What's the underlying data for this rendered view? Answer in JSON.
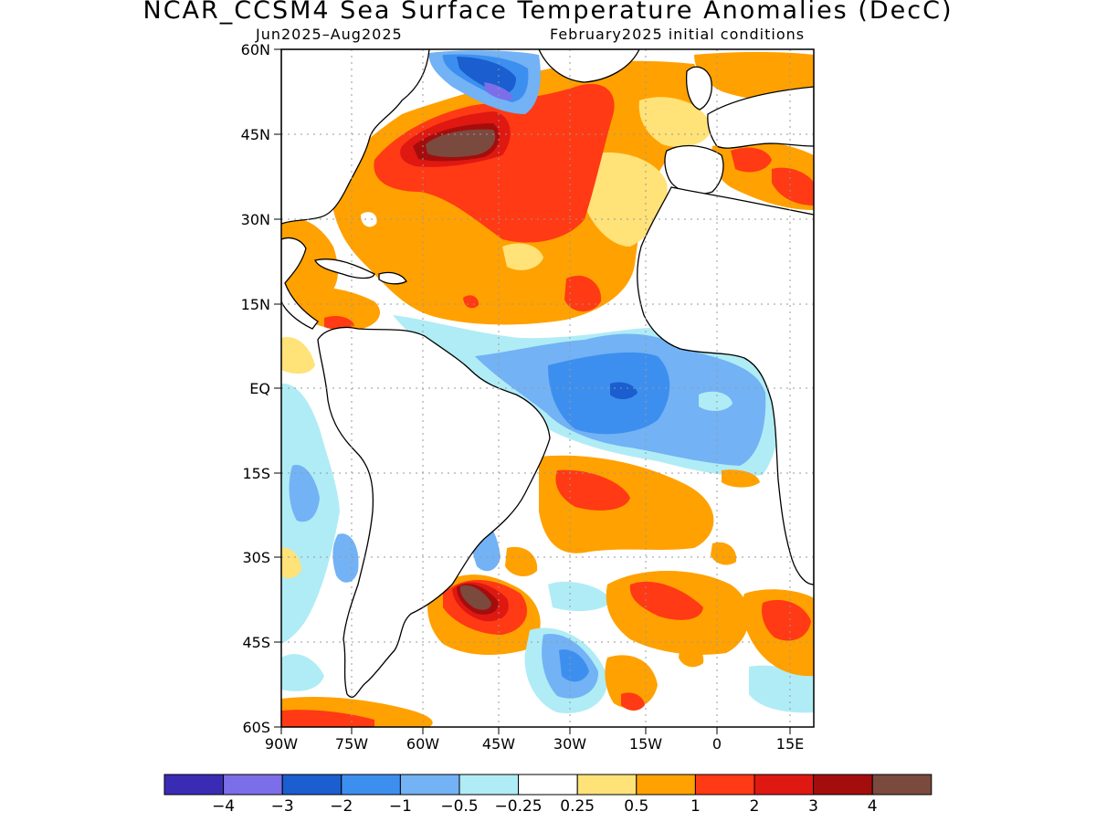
{
  "title": "NCAR_CCSM4 Sea Surface Temperature Anomalies (DecC)",
  "period": "Jun2025–Aug2025",
  "init": "February2025 initial conditions",
  "lat_ticks": [
    "60N",
    "45N",
    "30N",
    "15N",
    "EQ",
    "15S",
    "30S",
    "45S",
    "60S"
  ],
  "lon_ticks": [
    "90W",
    "75W",
    "60W",
    "45W",
    "30W",
    "15W",
    "0",
    "15E"
  ],
  "colorbar": {
    "colors": [
      "#3a2bb5",
      "#7c6ee8",
      "#1a5ecf",
      "#3d8fef",
      "#72b2f5",
      "#b0ecf5",
      "#ffffff",
      "#ffe278",
      "#ffa100",
      "#ff3a14",
      "#df1812",
      "#a50d0d",
      "#7a4a3e"
    ],
    "labels": [
      "−4",
      "−3",
      "−2",
      "−1",
      "−0.5",
      "−0.25",
      "0.25",
      "0.5",
      "1",
      "2",
      "3",
      "4"
    ]
  },
  "colors": {
    "land": "#ffffff",
    "coast": "#000000",
    "grid": "#999999"
  }
}
